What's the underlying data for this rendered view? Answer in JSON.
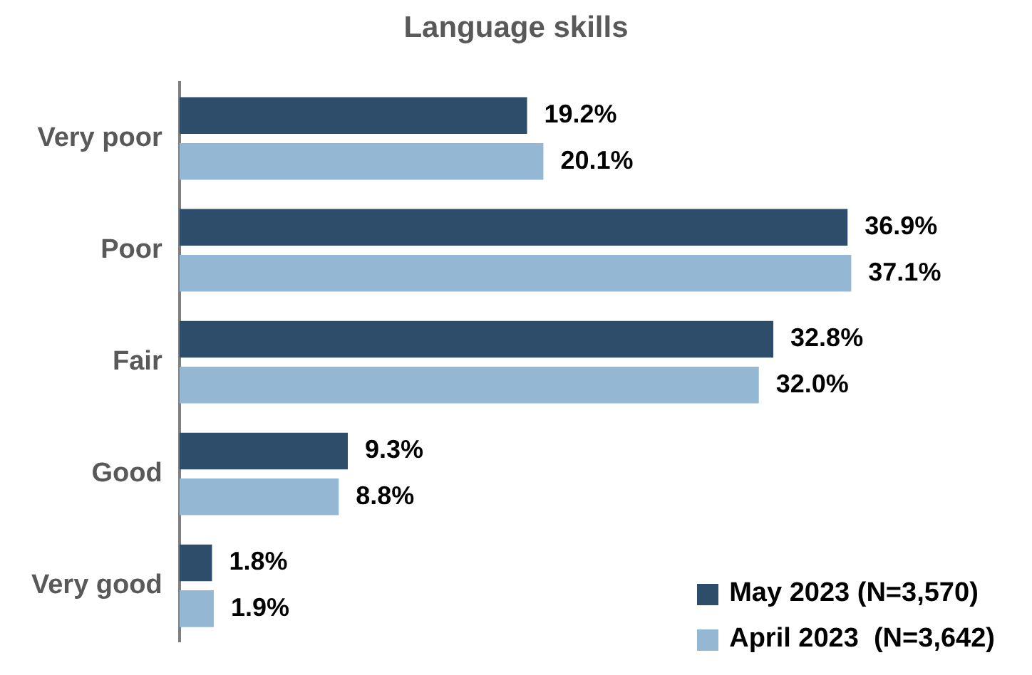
{
  "chart_data": {
    "type": "bar",
    "orientation": "horizontal",
    "title": "Language skills",
    "categories": [
      "Very poor",
      "Poor",
      "Fair",
      "Good",
      "Very good"
    ],
    "series": [
      {
        "name": "May 2023 (N=3,570)",
        "color": "#2e4d6b",
        "values": [
          19.2,
          36.9,
          32.8,
          9.3,
          1.8
        ],
        "value_labels": [
          "19.2%",
          "36.9%",
          "32.8%",
          "9.3%",
          "1.8%"
        ]
      },
      {
        "name": "April 2023  (N=3,642)",
        "color": "#94b8d3",
        "values": [
          20.1,
          37.1,
          32.0,
          8.8,
          1.9
        ],
        "value_labels": [
          "20.1%",
          "37.1%",
          "32.0%",
          "8.8%",
          "1.9%"
        ]
      }
    ],
    "legend": "bottom right",
    "tick_labels": "y"
  }
}
